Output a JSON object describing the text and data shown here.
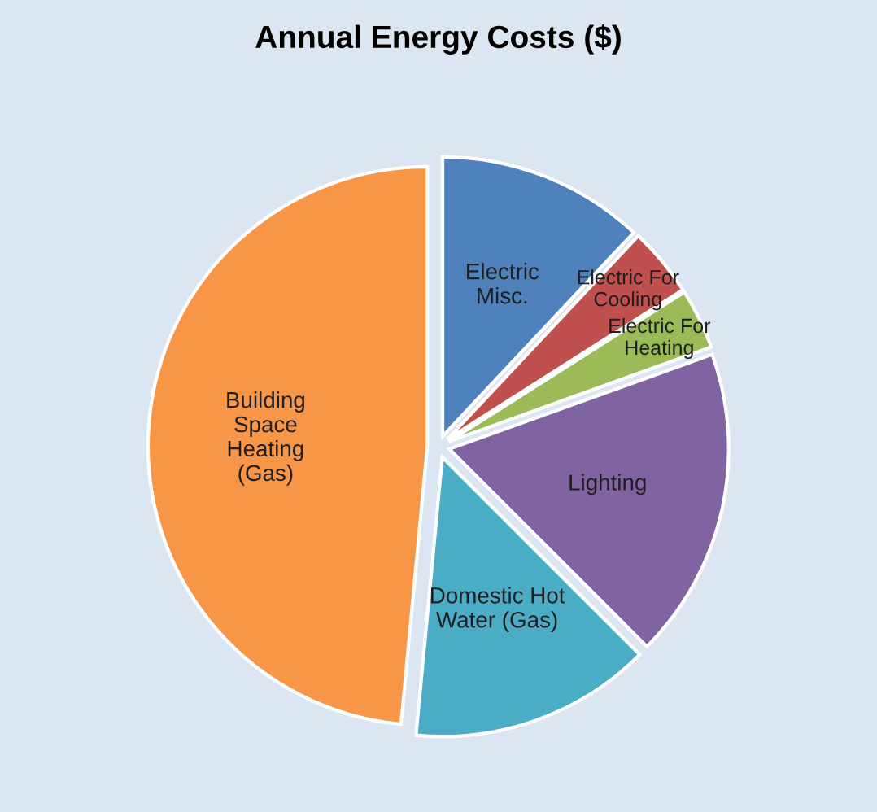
{
  "chart_data": {
    "type": "pie",
    "title": "Annual Energy Costs ($)",
    "categories": [
      "Electric Misc.",
      "Electric For Cooling",
      "Electric For Heating",
      "Lighting",
      "Domestic Hot Water (Gas)",
      "Building Space Heating (Gas)"
    ],
    "values": [
      12,
      4,
      3.5,
      18,
      14,
      48.5
    ],
    "colors": [
      "#4f81bd",
      "#c0504d",
      "#9bbb59",
      "#8064a2",
      "#4bacc6",
      "#f79646"
    ]
  }
}
